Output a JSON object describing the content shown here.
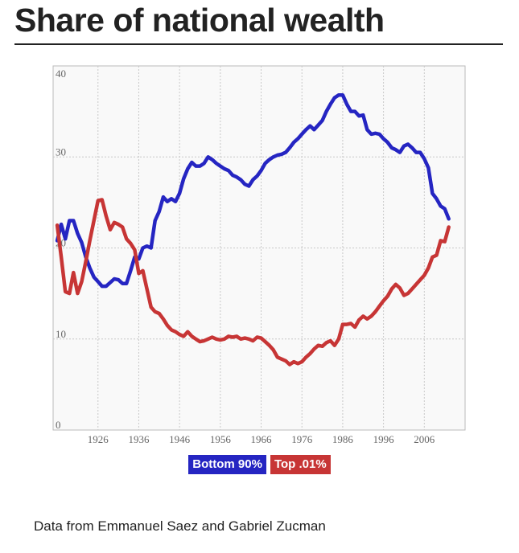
{
  "title": "Share of national wealth",
  "source": "Data from Emmanuel Saez and Gabriel Zucman",
  "chart_data": {
    "type": "line",
    "title": "Share of national wealth",
    "xlabel": "",
    "ylabel": "",
    "xlim": [
      1915,
      2016
    ],
    "ylim": [
      0,
      40
    ],
    "grid": true,
    "x_ticks": [
      1926,
      1936,
      1946,
      1956,
      1966,
      1976,
      1986,
      1996,
      2006
    ],
    "x_tick_labels": [
      "1926",
      "1936",
      "1946",
      "1956",
      "1966",
      "1976",
      "1986",
      "1996",
      "2006"
    ],
    "y_ticks": [
      0,
      10,
      20,
      30,
      40
    ],
    "y_tick_labels": [
      "0",
      "10",
      "20",
      "30",
      "40"
    ],
    "legend_position": "bottom-center",
    "series": [
      {
        "name": "Bottom 90%",
        "color": "#2525c2",
        "x": [
          1916,
          1917,
          1918,
          1919,
          1920,
          1921,
          1922,
          1923,
          1924,
          1925,
          1926,
          1927,
          1928,
          1929,
          1930,
          1931,
          1932,
          1933,
          1934,
          1935,
          1936,
          1937,
          1938,
          1939,
          1940,
          1941,
          1942,
          1943,
          1944,
          1945,
          1946,
          1947,
          1948,
          1949,
          1950,
          1951,
          1952,
          1953,
          1954,
          1955,
          1956,
          1957,
          1958,
          1959,
          1960,
          1961,
          1962,
          1963,
          1964,
          1965,
          1966,
          1967,
          1968,
          1969,
          1970,
          1971,
          1972,
          1973,
          1974,
          1975,
          1976,
          1977,
          1978,
          1979,
          1980,
          1981,
          1982,
          1983,
          1984,
          1985,
          1986,
          1987,
          1988,
          1989,
          1990,
          1991,
          1992,
          1993,
          1994,
          1995,
          1996,
          1997,
          1998,
          1999,
          2000,
          2001,
          2002,
          2003,
          2004,
          2005,
          2006,
          2007,
          2008,
          2009,
          2010,
          2011,
          2012
        ],
        "values": [
          20.8,
          22.6,
          21.0,
          23.0,
          23.0,
          21.6,
          20.6,
          19.0,
          17.8,
          16.8,
          16.3,
          15.8,
          15.8,
          16.2,
          16.6,
          16.5,
          16.1,
          16.1,
          17.5,
          19.0,
          18.8,
          20.0,
          20.2,
          20.0,
          23.0,
          24.0,
          25.6,
          25.1,
          25.4,
          25.1,
          26.0,
          27.6,
          28.7,
          29.4,
          29.0,
          29.0,
          29.3,
          30.0,
          29.7,
          29.3,
          29.0,
          28.7,
          28.5,
          28.0,
          27.8,
          27.5,
          27.0,
          26.8,
          27.5,
          27.9,
          28.5,
          29.3,
          29.7,
          30.0,
          30.2,
          30.3,
          30.5,
          31.0,
          31.6,
          32.0,
          32.5,
          33.0,
          33.4,
          33.0,
          33.5,
          34.0,
          35.0,
          35.8,
          36.5,
          36.8,
          36.8,
          35.8,
          35.0,
          35.0,
          34.5,
          34.6,
          33.0,
          32.5,
          32.6,
          32.5,
          32.0,
          31.6,
          31.0,
          30.8,
          30.5,
          31.2,
          31.4,
          31.0,
          30.5,
          30.5,
          29.8,
          28.8,
          26.0,
          25.4,
          24.6,
          24.3,
          23.2
        ]
      },
      {
        "name": "Top .01%",
        "color": "#c73535",
        "x": [
          1916,
          1917,
          1918,
          1919,
          1920,
          1921,
          1922,
          1923,
          1924,
          1925,
          1926,
          1927,
          1928,
          1929,
          1930,
          1931,
          1932,
          1933,
          1934,
          1935,
          1936,
          1937,
          1938,
          1939,
          1940,
          1941,
          1942,
          1943,
          1944,
          1945,
          1946,
          1947,
          1948,
          1949,
          1950,
          1951,
          1952,
          1953,
          1954,
          1955,
          1956,
          1957,
          1958,
          1959,
          1960,
          1961,
          1962,
          1963,
          1964,
          1965,
          1966,
          1967,
          1968,
          1969,
          1970,
          1971,
          1972,
          1973,
          1974,
          1975,
          1976,
          1977,
          1978,
          1979,
          1980,
          1981,
          1982,
          1983,
          1984,
          1985,
          1986,
          1987,
          1988,
          1989,
          1990,
          1991,
          1992,
          1993,
          1994,
          1995,
          1996,
          1997,
          1998,
          1999,
          2000,
          2001,
          2002,
          2003,
          2004,
          2005,
          2006,
          2007,
          2008,
          2009,
          2010,
          2011,
          2012
        ],
        "values": [
          22.5,
          19.0,
          15.2,
          15.0,
          17.3,
          15.0,
          16.3,
          18.5,
          20.8,
          23.0,
          25.2,
          25.3,
          23.5,
          22.0,
          22.8,
          22.6,
          22.3,
          21.0,
          20.5,
          19.8,
          17.2,
          17.5,
          15.5,
          13.5,
          13.0,
          12.8,
          12.2,
          11.5,
          11.0,
          10.8,
          10.5,
          10.3,
          10.8,
          10.3,
          10.0,
          9.7,
          9.8,
          10.0,
          10.2,
          10.0,
          9.9,
          10.0,
          10.3,
          10.2,
          10.3,
          10.0,
          10.1,
          10.0,
          9.8,
          10.2,
          10.1,
          9.7,
          9.3,
          8.8,
          8.0,
          7.8,
          7.6,
          7.2,
          7.5,
          7.3,
          7.5,
          8.0,
          8.4,
          8.9,
          9.3,
          9.2,
          9.6,
          9.8,
          9.3,
          10.0,
          11.6,
          11.6,
          11.7,
          11.3,
          12.1,
          12.5,
          12.2,
          12.5,
          13.0,
          13.6,
          14.2,
          14.7,
          15.5,
          16.0,
          15.6,
          14.8,
          15.0,
          15.5,
          16.0,
          16.5,
          17.0,
          17.8,
          19.0,
          19.2,
          20.8,
          20.7,
          22.3
        ]
      }
    ]
  }
}
